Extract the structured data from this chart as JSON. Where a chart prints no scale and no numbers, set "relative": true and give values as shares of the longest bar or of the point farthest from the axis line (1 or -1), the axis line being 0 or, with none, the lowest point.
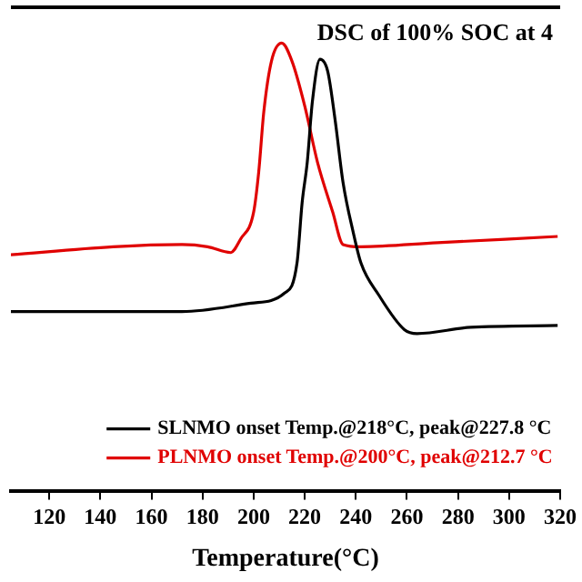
{
  "chart_data": {
    "type": "line",
    "title": "DSC of 100% SOC at 4",
    "xlabel": "Temperature(°C)",
    "relative": true,
    "grid": false,
    "legend": "bottom right",
    "marker": "none",
    "line_style": "solid",
    "xlim": [
      105,
      320
    ],
    "xticks": [
      120,
      140,
      160,
      180,
      200,
      220,
      240,
      260,
      280,
      300,
      320
    ],
    "series": [
      {
        "name": "SLNMO onset Temp.@218°C, peak@227.8 °C",
        "color": "#000000",
        "x": [
          105,
          172,
          199,
          212,
          217,
          219,
          221,
          223,
          226,
          229,
          232,
          235,
          239,
          242,
          249,
          259,
          264,
          285,
          319
        ],
        "values": [
          0.4,
          0.4,
          0.419,
          0.441,
          0.509,
          0.644,
          0.734,
          0.869,
          0.964,
          0.937,
          0.824,
          0.689,
          0.577,
          0.509,
          0.437,
          0.36,
          0.351,
          0.365,
          0.369
        ]
      },
      {
        "name": "PLNMO onset Temp.@200°C, peak@212.7 °C",
        "color": "#e00000",
        "x": [
          105,
          145,
          172,
          182,
          191,
          195,
          200,
          202,
          204,
          207,
          211,
          215,
          220,
          225,
          231,
          235,
          242,
          272,
          319
        ],
        "values": [
          0.527,
          0.545,
          0.55,
          0.545,
          0.532,
          0.563,
          0.622,
          0.712,
          0.847,
          0.96,
          1.0,
          0.96,
          0.86,
          0.734,
          0.622,
          0.55,
          0.545,
          0.554,
          0.568
        ]
      }
    ]
  }
}
